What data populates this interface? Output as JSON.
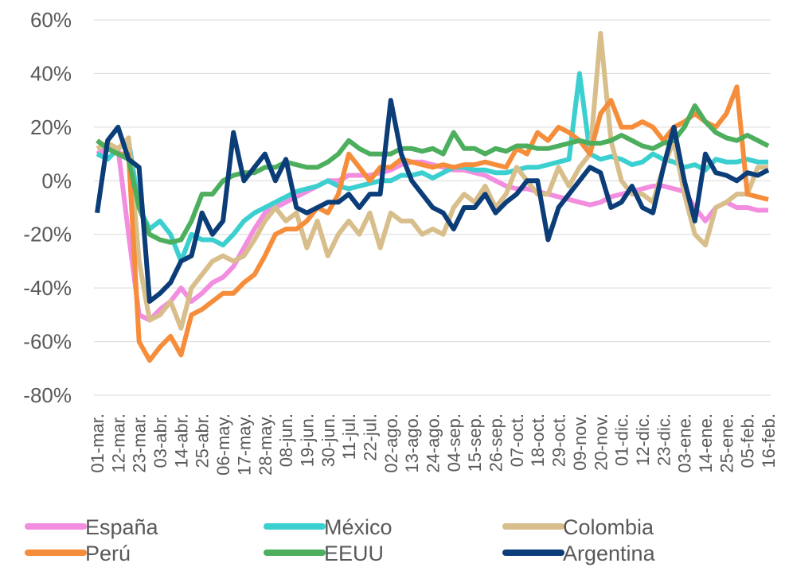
{
  "chart_data": {
    "type": "line",
    "categories": [
      "01-mar.",
      null,
      "12-mar.",
      null,
      "23-mar.",
      null,
      "03-abr.",
      null,
      "14-abr.",
      null,
      "25-abr.",
      null,
      "06-may.",
      null,
      "17-may.",
      null,
      "28-may.",
      null,
      "08-jun.",
      null,
      "19-jun.",
      null,
      "30-jun.",
      null,
      "11-jul.",
      null,
      "22-jul.",
      null,
      "02-ago.",
      null,
      "13-ago.",
      null,
      "24-ago.",
      null,
      "04-sep.",
      null,
      "15-sep.",
      null,
      "26-sep.",
      null,
      "07-oct.",
      null,
      "18-oct.",
      null,
      "29-oct.",
      null,
      "09-nov.",
      null,
      "20-nov.",
      null,
      "01-dic.",
      null,
      "12-dic.",
      null,
      "23-dic.",
      null,
      "03-ene.",
      null,
      "14-ene.",
      null,
      "25-ene.",
      null,
      "05-feb.",
      null,
      "16-feb."
    ],
    "series": [
      {
        "name": "España",
        "color": "#f28de0",
        "values": [
          10,
          12,
          12,
          -20,
          -50,
          -52,
          -48,
          -45,
          -40,
          -45,
          -42,
          -38,
          -36,
          -32,
          -25,
          -18,
          -12,
          -10,
          -8,
          -6,
          -4,
          -2,
          0,
          0,
          2,
          2,
          2,
          3,
          4,
          6,
          7,
          7,
          6,
          5,
          4,
          4,
          3,
          2,
          0,
          -2,
          -3,
          -3,
          -4,
          -5,
          -6,
          -7,
          -8,
          -9,
          -8,
          -6,
          -5,
          -4,
          -3,
          -2,
          -2,
          -3,
          -4,
          -10,
          -15,
          -10,
          -8,
          -10,
          -10,
          -11,
          -11
        ]
      },
      {
        "name": "México",
        "color": "#3ccfcf",
        "values": [
          10,
          8,
          12,
          15,
          -10,
          -18,
          -15,
          -20,
          -30,
          -20,
          -22,
          -22,
          -24,
          -20,
          -15,
          -12,
          -10,
          -8,
          -6,
          -4,
          -3,
          -2,
          0,
          -2,
          -3,
          -2,
          -1,
          0,
          0,
          2,
          2,
          3,
          1,
          3,
          5,
          5,
          4,
          4,
          3,
          3,
          4,
          5,
          5,
          6,
          7,
          8,
          40,
          10,
          8,
          9,
          8,
          6,
          7,
          10,
          8,
          7,
          5,
          6,
          4,
          8,
          7,
          7,
          8,
          7,
          7
        ]
      },
      {
        "name": "Colombia",
        "color": "#d8be8b",
        "values": [
          12,
          14,
          12,
          16,
          -30,
          -52,
          -50,
          -45,
          -55,
          -40,
          -35,
          -30,
          -28,
          -30,
          -28,
          -22,
          -15,
          -10,
          -15,
          -12,
          -25,
          -15,
          -28,
          -20,
          -15,
          -20,
          -12,
          -25,
          -12,
          -15,
          -15,
          -20,
          -18,
          -20,
          -10,
          -5,
          -8,
          -2,
          -10,
          -5,
          5,
          0,
          -5,
          -5,
          5,
          -2,
          5,
          10,
          55,
          15,
          0,
          -5,
          -5,
          -8,
          5,
          15,
          -5,
          -20,
          -24,
          -10,
          -8,
          -5,
          -5,
          5,
          5
        ]
      },
      {
        "name": "Perú",
        "color": "#f68d3b",
        "values": [
          15,
          12,
          10,
          10,
          -60,
          -67,
          -62,
          -58,
          -65,
          -50,
          -48,
          -45,
          -42,
          -42,
          -38,
          -35,
          -28,
          -20,
          -18,
          -18,
          -15,
          -10,
          -12,
          -5,
          10,
          5,
          0,
          5,
          5,
          8,
          7,
          6,
          5,
          6,
          5,
          6,
          6,
          7,
          6,
          5,
          12,
          10,
          18,
          15,
          20,
          18,
          15,
          10,
          25,
          30,
          20,
          20,
          22,
          20,
          15,
          20,
          22,
          25,
          22,
          20,
          25,
          35,
          -5,
          -6,
          -7
        ]
      },
      {
        "name": "EEUU",
        "color": "#4dae5d",
        "values": [
          15,
          12,
          10,
          8,
          -10,
          -20,
          -22,
          -23,
          -22,
          -15,
          -5,
          -5,
          0,
          2,
          3,
          3,
          5,
          5,
          7,
          6,
          5,
          5,
          7,
          10,
          15,
          12,
          10,
          10,
          10,
          12,
          12,
          11,
          12,
          10,
          18,
          12,
          12,
          10,
          12,
          11,
          13,
          13,
          12,
          12,
          13,
          14,
          15,
          14,
          14,
          15,
          17,
          15,
          13,
          12,
          14,
          15,
          20,
          28,
          22,
          18,
          16,
          15,
          17,
          15,
          13
        ]
      },
      {
        "name": "Argentina",
        "color": "#0b3d78",
        "values": [
          -12,
          15,
          20,
          8,
          5,
          -45,
          -42,
          -38,
          -30,
          -28,
          -12,
          -20,
          -15,
          18,
          0,
          5,
          10,
          0,
          8,
          -10,
          -12,
          -10,
          -8,
          -8,
          -5,
          -10,
          -5,
          -5,
          30,
          10,
          0,
          -5,
          -10,
          -12,
          -18,
          -10,
          -10,
          -5,
          -12,
          -8,
          -5,
          0,
          0,
          -22,
          -10,
          -5,
          0,
          5,
          3,
          -10,
          -8,
          -2,
          -10,
          -12,
          5,
          20,
          0,
          -15,
          10,
          3,
          2,
          0,
          3,
          2,
          4
        ]
      }
    ],
    "ylim": [
      -80,
      60
    ],
    "yticks": [
      {
        "value": -80,
        "label": "-80%"
      },
      {
        "value": -60,
        "label": "-60%"
      },
      {
        "value": -40,
        "label": "-40%"
      },
      {
        "value": -20,
        "label": "-20%"
      },
      {
        "value": 0,
        "label": "0%"
      },
      {
        "value": 20,
        "label": "20%"
      },
      {
        "value": 40,
        "label": "40%"
      },
      {
        "value": 60,
        "label": "60%"
      }
    ],
    "grid": true
  }
}
